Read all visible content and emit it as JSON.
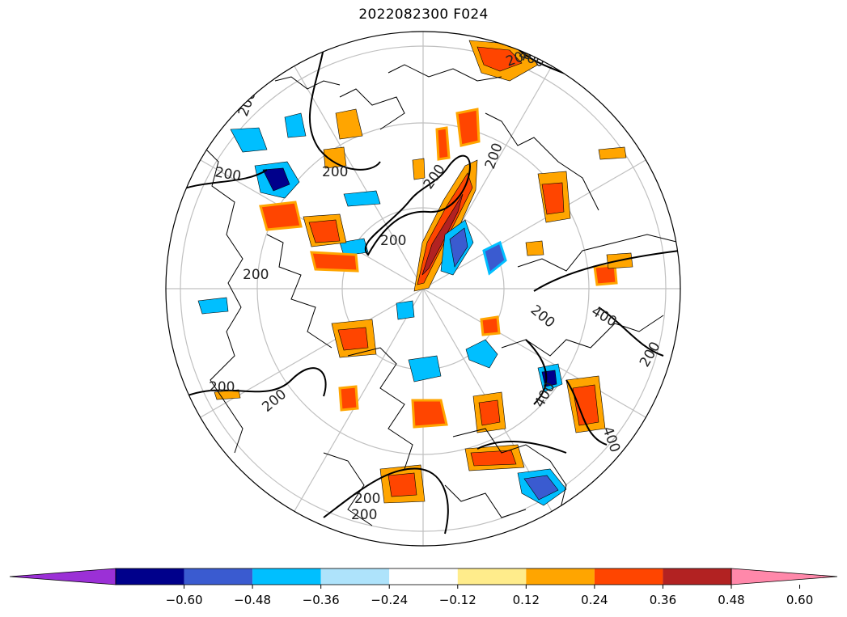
{
  "title": "2022082300 F024",
  "colorbar": {
    "ticks": [
      "−0.60",
      "−0.48",
      "−0.36",
      "−0.24",
      "−0.12",
      "0.12",
      "0.24",
      "0.36",
      "0.48",
      "0.60"
    ],
    "colors": [
      "#9b30d6",
      "#00008b",
      "#3a5bd0",
      "#00bfff",
      "#aee3fb",
      "#ffffff",
      "#ffec8b",
      "#ffa500",
      "#ff4500",
      "#b22222",
      "#ff88aa"
    ],
    "extend": "both"
  },
  "contour_labels": [
    "400",
    "200",
    "200",
    "200",
    "200",
    "200",
    "200",
    "200",
    "200",
    "200",
    "400",
    "200",
    "400",
    "400",
    "200",
    "200",
    "200",
    "200"
  ],
  "map": {
    "projection": "north-polar-stereographic",
    "gridlines": true,
    "coastlines": true
  }
}
